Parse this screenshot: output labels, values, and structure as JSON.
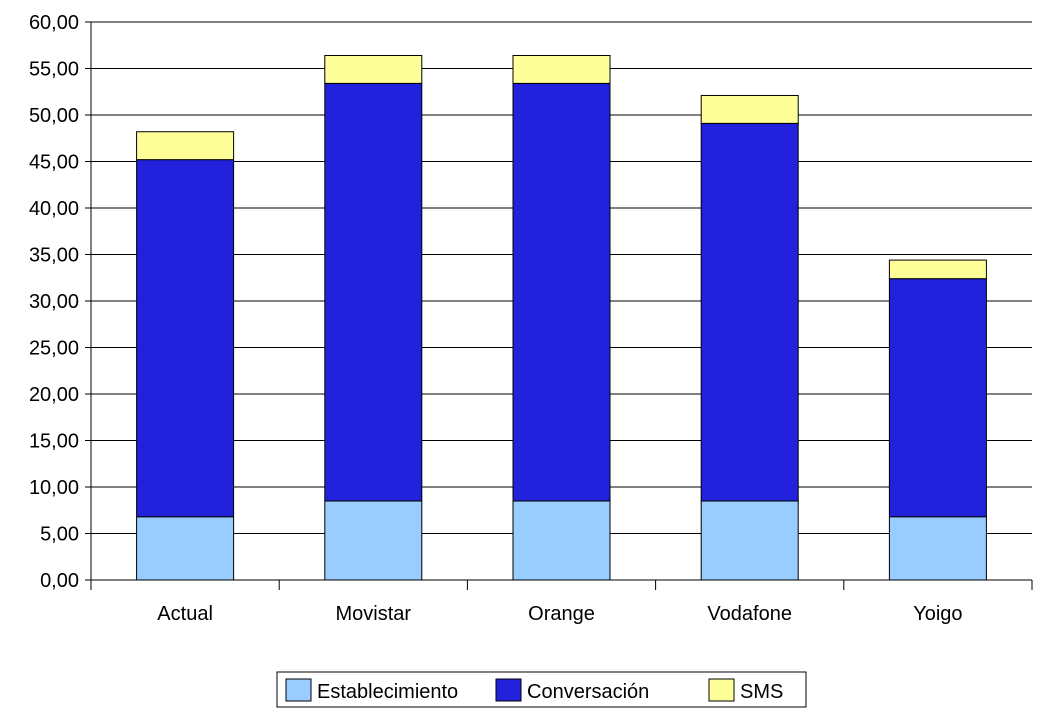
{
  "chart_data": {
    "type": "bar",
    "stacked": true,
    "categories": [
      "Actual",
      "Movistar",
      "Orange",
      "Vodafone",
      "Yoigo"
    ],
    "series": [
      {
        "name": "Establecimiento",
        "values": [
          6.8,
          8.5,
          8.5,
          8.5,
          6.8
        ],
        "color": "#99CCFF"
      },
      {
        "name": "Conversación",
        "values": [
          38.4,
          44.9,
          44.9,
          40.6,
          25.6
        ],
        "color": "#2222DD"
      },
      {
        "name": "SMS",
        "values": [
          3.0,
          3.0,
          3.0,
          3.0,
          2.0
        ],
        "color": "#FFFF99"
      }
    ],
    "y_ticks": [
      "0,00",
      "5,00",
      "10,00",
      "15,00",
      "20,00",
      "25,00",
      "30,00",
      "35,00",
      "40,00",
      "45,00",
      "50,00",
      "55,00",
      "60,00"
    ],
    "ylim": [
      0,
      60
    ],
    "grid": true,
    "legend_position": "bottom"
  }
}
